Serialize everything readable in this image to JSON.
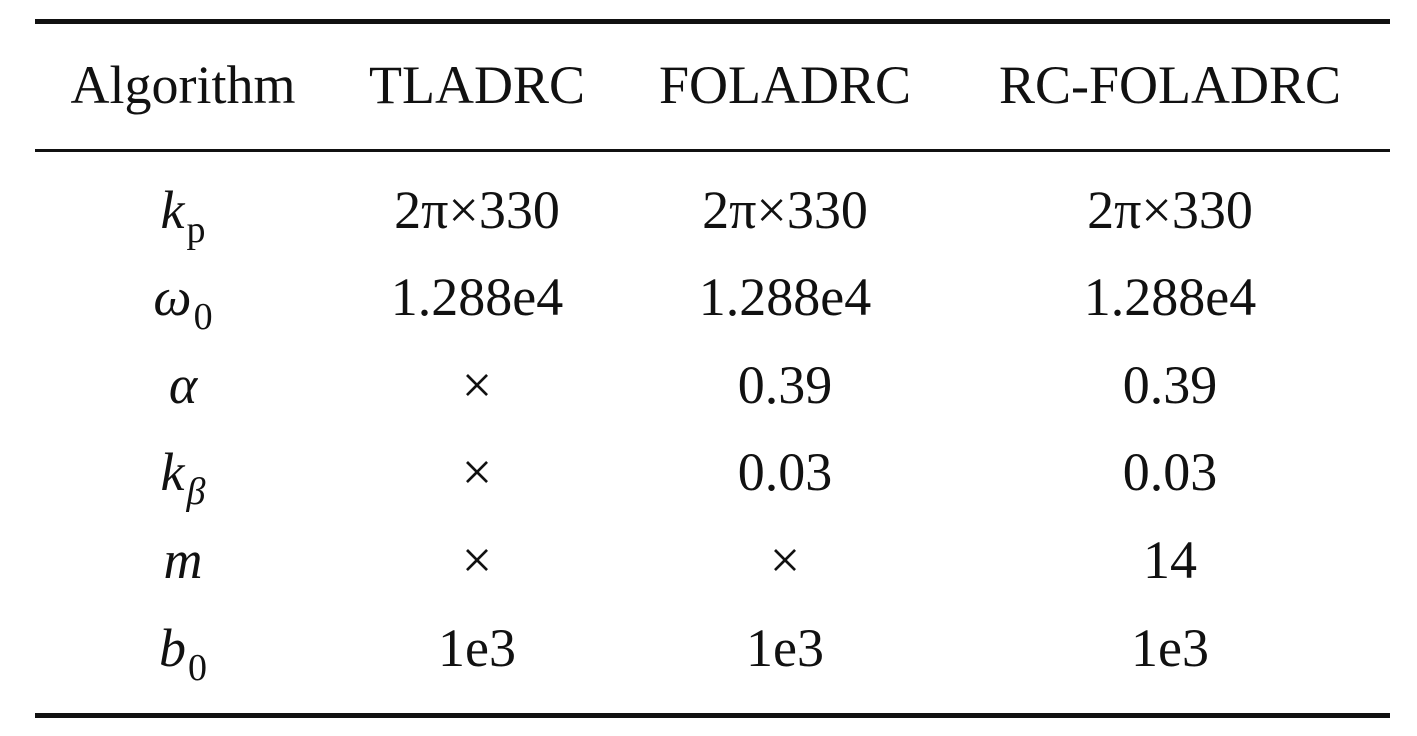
{
  "table": {
    "header": [
      "Algorithm",
      "TLADRC",
      "FOLADRC",
      "RC-FOLADRC"
    ],
    "rows": [
      [
        {
          "symbol": "k",
          "sub": "p"
        },
        "2π×330",
        "2π×330",
        "2π×330"
      ],
      [
        {
          "symbol": "ω",
          "sub": "0"
        },
        "1.288e4",
        "1.288e4",
        "1.288e4"
      ],
      [
        {
          "symbol": "α"
        },
        "×",
        "0.39",
        "0.39"
      ],
      [
        {
          "symbol": "k",
          "sub": "β"
        },
        "×",
        "0.03",
        "0.03"
      ],
      [
        {
          "symbol": "m"
        },
        "×",
        "×",
        "14"
      ],
      [
        {
          "symbol": "b",
          "sub": "0"
        },
        "1e3",
        "1e3",
        "1e3"
      ]
    ]
  }
}
